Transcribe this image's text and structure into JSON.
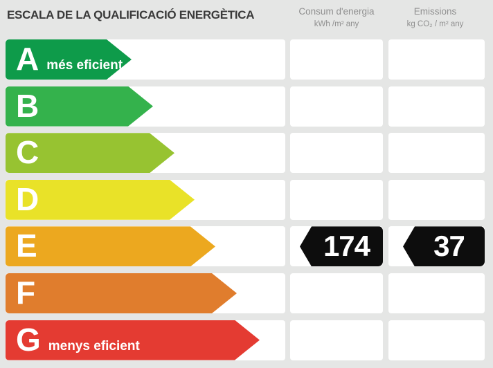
{
  "page": {
    "background_color": "#e5e6e5"
  },
  "header": {
    "title": "ESCALA DE LA QUALIFICACIÓ ENERGÈTICA",
    "columns": [
      {
        "id": "consum",
        "label": "Consum d'energia",
        "unit": "kWh /m²  any"
      },
      {
        "id": "emissions",
        "label": "Emissions",
        "unit": "kg CO₂  / m²  any"
      }
    ]
  },
  "scale": {
    "rows": [
      {
        "letter": "A",
        "note": "més eficient",
        "color": "#0e9b4a",
        "arrow_tip_x": 190
      },
      {
        "letter": "B",
        "note": "",
        "color": "#34b24c",
        "arrow_tip_x": 221
      },
      {
        "letter": "C",
        "note": "",
        "color": "#97c331",
        "arrow_tip_x": 252
      },
      {
        "letter": "D",
        "note": "",
        "color": "#e9e228",
        "arrow_tip_x": 281
      },
      {
        "letter": "E",
        "note": "",
        "color": "#eca81f",
        "arrow_tip_x": 311
      },
      {
        "letter": "F",
        "note": "",
        "color": "#e07d2d",
        "arrow_tip_x": 342
      },
      {
        "letter": "G",
        "note": "menys eficient",
        "color": "#e43b32",
        "arrow_tip_x": 375
      }
    ]
  },
  "result": {
    "rating_letter": "E",
    "consum_value": "174",
    "emissions_value": "37",
    "badge_color": "#0d0d0d",
    "value_text_color": "#ffffff"
  },
  "chart_data": {
    "type": "bar",
    "title": "ESCALA DE LA QUALIFICACIÓ ENERGÈTICA",
    "categories": [
      "A",
      "B",
      "C",
      "D",
      "E",
      "F",
      "G"
    ],
    "category_colors": [
      "#0e9b4a",
      "#34b24c",
      "#97c331",
      "#e9e228",
      "#eca81f",
      "#e07d2d",
      "#e43b32"
    ],
    "series": [
      {
        "name": "Consum d'energia (kWh /m² any)",
        "values": [
          null,
          null,
          null,
          null,
          174,
          null,
          null
        ]
      },
      {
        "name": "Emissions (kg CO₂ / m² any)",
        "values": [
          null,
          null,
          null,
          null,
          37,
          null,
          null
        ]
      }
    ],
    "selected_rating": "E",
    "annotations": [
      "A = més eficient",
      "G = menys eficient"
    ],
    "legend_position": "top",
    "grid": false
  }
}
